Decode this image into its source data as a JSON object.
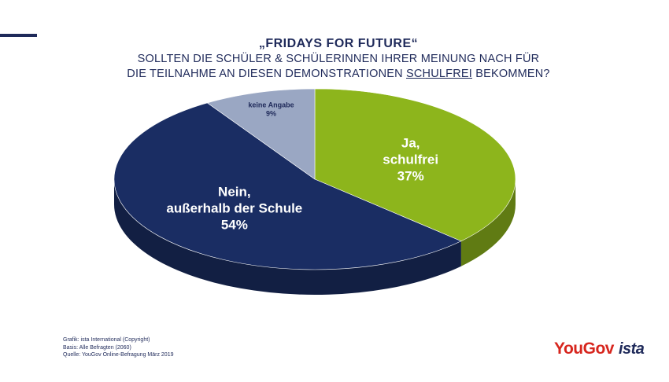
{
  "title": {
    "line1": "„FRIDAYS FOR FUTURE“",
    "line2": "SOLLTEN DIE SCHÜLER & SCHÜLERINNEN IHRER MEINUNG NACH FÜR",
    "line3_prefix": "DIE TEILNAHME AN DIESEN DEMONSTRATIONEN ",
    "line3_underlined": "SCHULFREI",
    "line3_suffix": " BEKOMMEN?"
  },
  "chart_data": {
    "type": "pie",
    "title": "„FRIDAYS FOR FUTURE“",
    "slices": [
      {
        "label_lines": [
          "Ja,",
          "schulfrei"
        ],
        "value": 37,
        "value_label": "37%",
        "color": "#8db51c"
      },
      {
        "label_lines": [
          "Nein,",
          "außerhalb der Schule"
        ],
        "value": 54,
        "value_label": "54%",
        "color": "#1a2d63"
      },
      {
        "label_lines": [
          "keine Angabe"
        ],
        "value": 9,
        "value_label": "9%",
        "color": "#9aa7c3"
      }
    ]
  },
  "footer": {
    "line1": "Grafik: ista International (Copyright)",
    "line2": "Basis: Alle Befragten (2060)",
    "line3": "Quelle: YouGov Online-Befragung März 2019"
  },
  "logos": {
    "yougov": "YouGov",
    "ista": "ista"
  },
  "colors": {
    "navy": "#1f2a5a",
    "accent_red": "#d7261e"
  }
}
